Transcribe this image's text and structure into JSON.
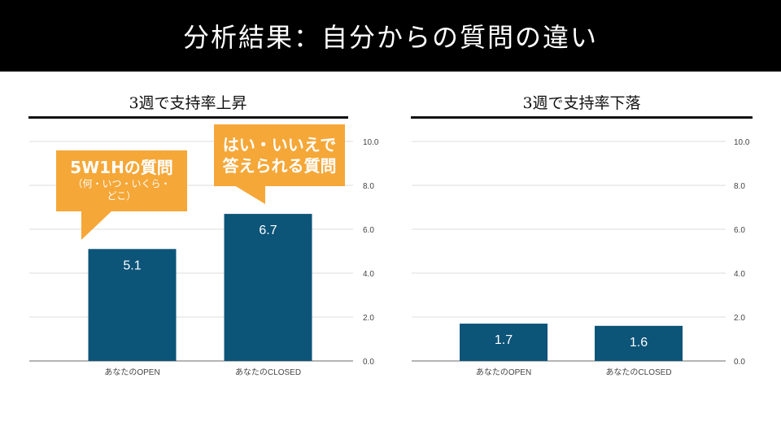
{
  "header": {
    "title": "分析結果：自分からの質問の違い"
  },
  "colors": {
    "bar": "#0C5478",
    "callout": "#F5A738",
    "grid": "#dddddd"
  },
  "callouts": {
    "open": {
      "main": "5W1Hの質問",
      "sub_line1": "（何・いつ・いくら・",
      "sub_line2": "どこ）"
    },
    "closed": {
      "main_line1": "はい・いいえで",
      "main_line2": "答えられる質問"
    }
  },
  "chart_data": [
    {
      "type": "bar",
      "title": "3週で支持率上昇",
      "categories": [
        "あなたのOPEN",
        "あなたのCLOSED"
      ],
      "values": [
        5.1,
        6.7
      ],
      "data_labels": [
        "5.1",
        "6.7"
      ],
      "yticks": [
        "0.0",
        "2.0",
        "4.0",
        "6.0",
        "8.0",
        "10.0"
      ],
      "ylim": [
        0,
        10
      ],
      "y_axis_side": "right",
      "grid": true
    },
    {
      "type": "bar",
      "title": "3週で支持率下落",
      "categories": [
        "あなたのOPEN",
        "あなたのCLOSED"
      ],
      "values": [
        1.7,
        1.6
      ],
      "data_labels": [
        "1.7",
        "1.6"
      ],
      "yticks": [
        "0.0",
        "2.0",
        "4.0",
        "6.0",
        "8.0",
        "10.0"
      ],
      "ylim": [
        0,
        10
      ],
      "y_axis_side": "right",
      "grid": true
    }
  ]
}
